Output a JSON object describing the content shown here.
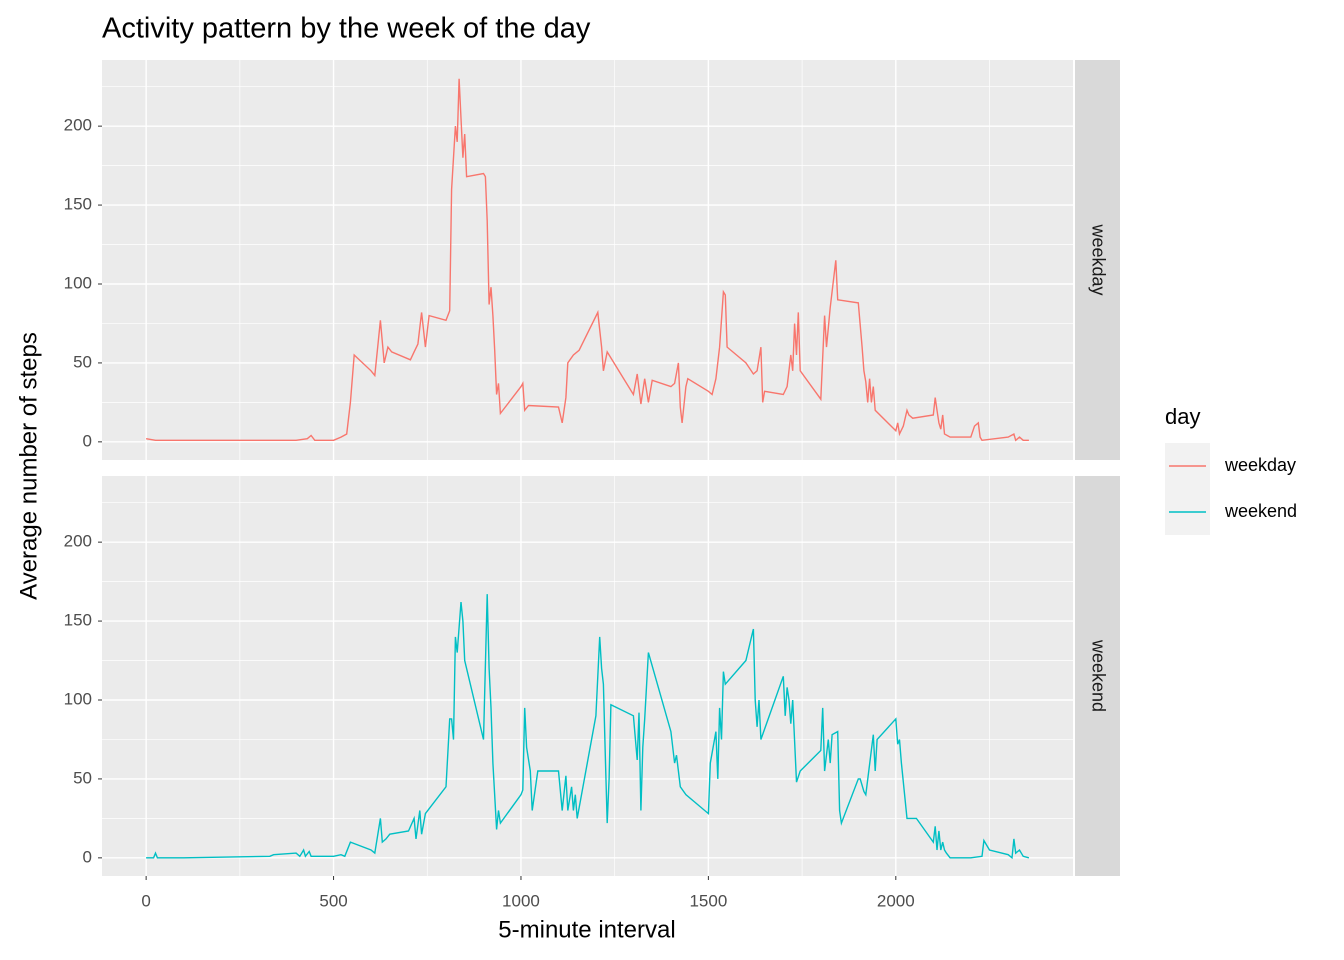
{
  "chart_data": {
    "type": "line",
    "title": "Activity pattern by the week of the day",
    "xlabel": "5-minute interval",
    "ylabel": "Average number of steps",
    "legend_title": "day",
    "legend": "right",
    "grid": true,
    "minor_grid": true,
    "facet": "rows",
    "xlim": [
      -117.75,
      2472.75
    ],
    "xticks": [
      0,
      500,
      1000,
      1500,
      2000
    ],
    "ylim": [
      -11.5,
      241.9
    ],
    "yticks": [
      0,
      50,
      100,
      150,
      200
    ],
    "series": [
      {
        "name": "weekday",
        "color": "#f8766d",
        "x": [
          0,
          25,
          100,
          130,
          200,
          300,
          400,
          430,
          440,
          450,
          500,
          520,
          535,
          545,
          555,
          600,
          610,
          620,
          625,
          635,
          645,
          655,
          705,
          715,
          725,
          735,
          745,
          755,
          800,
          810,
          815,
          825,
          830,
          835,
          845,
          850,
          855,
          900,
          905,
          910,
          915,
          920,
          925,
          930,
          935,
          940,
          945,
          1000,
          1005,
          1010,
          1020,
          1100,
          1110,
          1120,
          1125,
          1140,
          1155,
          1205,
          1215,
          1220,
          1230,
          1300,
          1310,
          1320,
          1330,
          1340,
          1350,
          1400,
          1410,
          1420,
          1425,
          1430,
          1440,
          1445,
          1500,
          1510,
          1520,
          1530,
          1540,
          1545,
          1550,
          1600,
          1620,
          1630,
          1640,
          1645,
          1650,
          1700,
          1710,
          1720,
          1725,
          1730,
          1735,
          1740,
          1745,
          1800,
          1810,
          1815,
          1820,
          1825,
          1840,
          1845,
          1900,
          1910,
          1915,
          1920,
          1925,
          1930,
          1935,
          1940,
          1945,
          2000,
          2005,
          2010,
          2020,
          2030,
          2035,
          2045,
          2100,
          2105,
          2110,
          2115,
          2120,
          2125,
          2130,
          2145,
          2200,
          2210,
          2220,
          2225,
          2230,
          2300,
          2315,
          2320,
          2330,
          2340,
          2355
        ],
        "values": [
          2,
          1,
          1,
          1,
          1,
          1,
          1,
          2,
          4,
          1,
          1,
          3,
          5,
          25,
          55,
          45,
          42,
          65,
          77,
          50,
          60,
          57,
          52,
          57,
          62,
          82,
          60,
          80,
          77,
          83,
          160,
          200,
          190,
          230,
          180,
          195,
          168,
          170,
          168,
          140,
          87,
          98,
          80,
          58,
          30,
          37,
          18,
          35,
          37,
          20,
          23,
          22,
          12,
          28,
          50,
          55,
          58,
          82,
          60,
          45,
          57,
          30,
          43,
          24,
          40,
          25,
          39,
          35,
          37,
          50,
          22,
          12,
          35,
          40,
          32,
          30,
          40,
          60,
          95,
          93,
          60,
          50,
          43,
          45,
          60,
          25,
          32,
          30,
          35,
          55,
          45,
          75,
          55,
          82,
          45,
          27,
          80,
          60,
          72,
          85,
          115,
          90,
          88,
          60,
          45,
          38,
          25,
          40,
          25,
          35,
          20,
          7,
          12,
          5,
          10,
          20,
          17,
          15,
          17,
          28,
          20,
          12,
          8,
          17,
          5,
          3,
          3,
          10,
          12,
          3,
          1,
          3,
          5,
          1,
          3,
          1,
          1
        ]
      },
      {
        "name": "weekend",
        "color": "#00bfc4",
        "x": [
          0,
          20,
          25,
          30,
          100,
          330,
          340,
          400,
          410,
          420,
          425,
          435,
          440,
          500,
          520,
          530,
          545,
          600,
          610,
          625,
          630,
          640,
          650,
          700,
          715,
          720,
          730,
          735,
          745,
          800,
          810,
          815,
          820,
          825,
          830,
          840,
          845,
          850,
          900,
          910,
          915,
          920,
          925,
          935,
          940,
          945,
          1000,
          1005,
          1010,
          1015,
          1025,
          1030,
          1045,
          1100,
          1110,
          1120,
          1125,
          1135,
          1140,
          1145,
          1150,
          1200,
          1210,
          1215,
          1220,
          1225,
          1230,
          1235,
          1240,
          1300,
          1310,
          1315,
          1320,
          1325,
          1330,
          1340,
          1400,
          1410,
          1415,
          1420,
          1425,
          1440,
          1500,
          1505,
          1520,
          1525,
          1530,
          1535,
          1540,
          1545,
          1600,
          1615,
          1620,
          1625,
          1630,
          1635,
          1640,
          1700,
          1705,
          1710,
          1715,
          1720,
          1725,
          1735,
          1745,
          1800,
          1805,
          1810,
          1820,
          1825,
          1830,
          1845,
          1850,
          1855,
          1900,
          1905,
          1915,
          1920,
          1940,
          1945,
          1950,
          2000,
          2005,
          2010,
          2015,
          2030,
          2055,
          2100,
          2105,
          2110,
          2115,
          2120,
          2125,
          2130,
          2135,
          2145,
          2200,
          2230,
          2235,
          2250,
          2300,
          2310,
          2315,
          2320,
          2330,
          2340,
          2355
        ],
        "values": [
          0,
          0,
          3,
          0,
          0,
          1,
          2,
          3,
          1,
          5,
          1,
          4,
          1,
          1,
          2,
          1,
          10,
          5,
          3,
          25,
          10,
          12,
          15,
          17,
          25,
          12,
          30,
          15,
          28,
          45,
          88,
          88,
          75,
          140,
          130,
          162,
          150,
          125,
          75,
          167,
          120,
          95,
          60,
          18,
          30,
          22,
          40,
          43,
          95,
          70,
          55,
          30,
          55,
          55,
          30,
          52,
          30,
          45,
          30,
          40,
          25,
          90,
          140,
          120,
          110,
          65,
          22,
          50,
          97,
          90,
          62,
          92,
          30,
          70,
          88,
          130,
          80,
          60,
          65,
          55,
          45,
          40,
          28,
          60,
          80,
          50,
          95,
          75,
          118,
          110,
          125,
          140,
          145,
          100,
          83,
          100,
          75,
          115,
          90,
          108,
          100,
          85,
          100,
          48,
          55,
          68,
          95,
          55,
          75,
          60,
          78,
          80,
          30,
          22,
          50,
          50,
          42,
          40,
          78,
          55,
          75,
          88,
          72,
          75,
          60,
          25,
          25,
          10,
          20,
          5,
          17,
          5,
          10,
          5,
          3,
          0,
          0,
          1,
          11,
          5,
          2,
          0,
          12,
          3,
          5,
          1,
          0
        ]
      }
    ]
  }
}
